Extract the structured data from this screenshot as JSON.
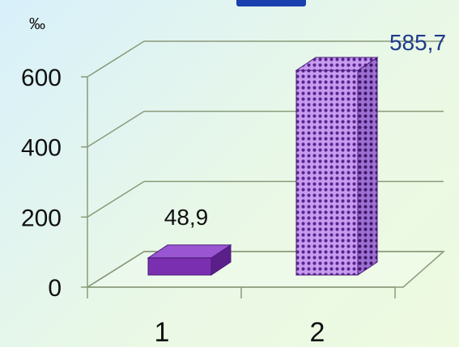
{
  "chart_data": {
    "type": "bar",
    "unit_label": "‰",
    "categories": [
      "1",
      "2"
    ],
    "values": [
      48.9,
      585.7
    ],
    "value_labels": [
      "48,9",
      "585,7"
    ],
    "ylim": [
      0,
      600
    ],
    "yticks": [
      0,
      200,
      400,
      600
    ],
    "ytick_labels": [
      "0",
      "200",
      "400",
      "600"
    ],
    "grid": true,
    "colors": {
      "bar1": "#7a2fb0",
      "bar2": "#b07be0",
      "bar2_pattern": "#5a2590",
      "label1": "#111111",
      "label2": "#1f3a8a",
      "grid": "#8a9a7a",
      "title_fragment": "#1a3fae"
    }
  }
}
